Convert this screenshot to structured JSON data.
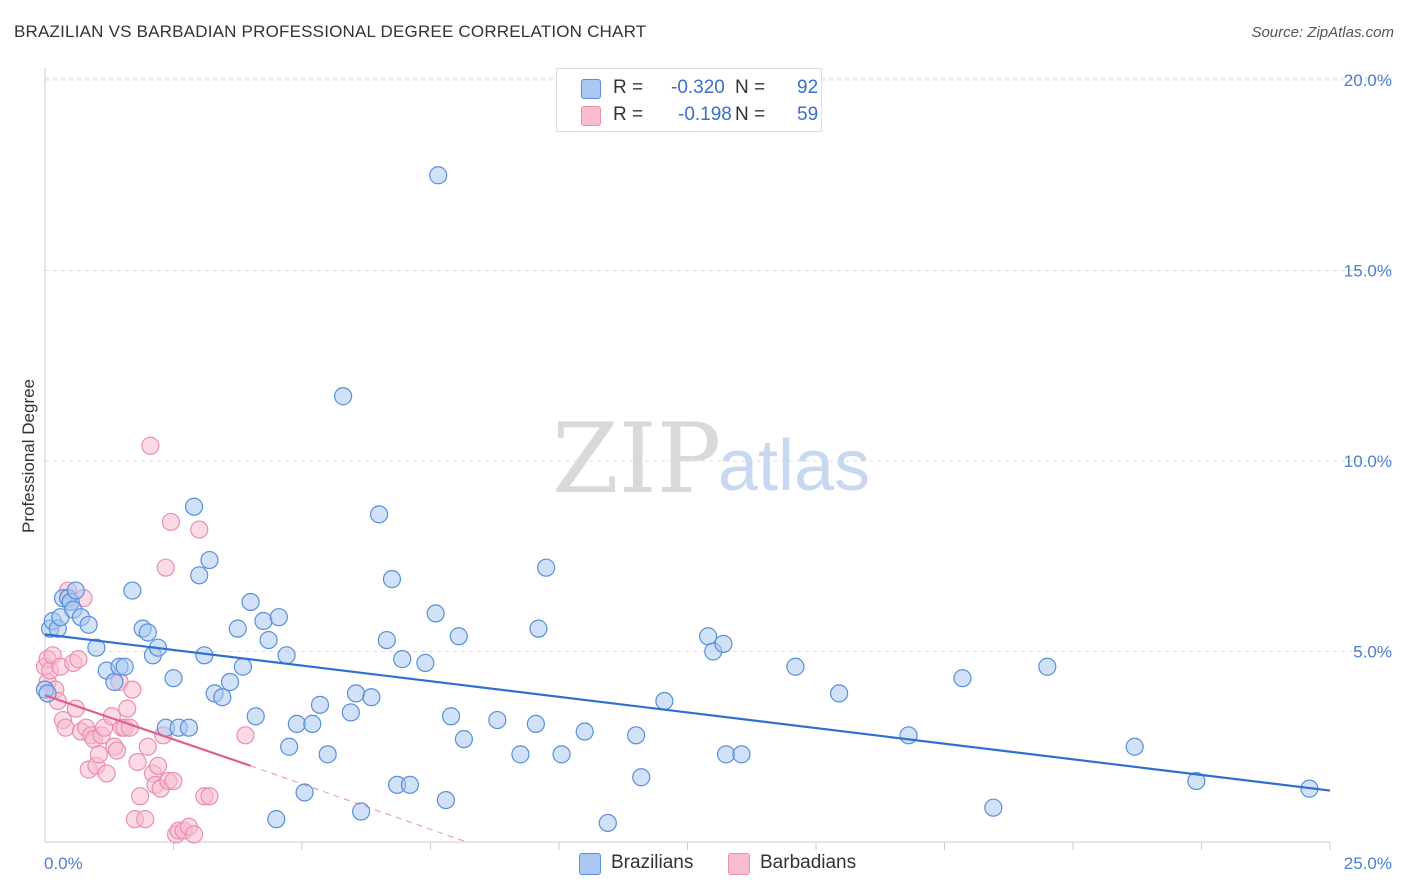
{
  "header": {
    "title": "BRAZILIAN VS BARBADIAN PROFESSIONAL DEGREE CORRELATION CHART",
    "source": "Source: ZipAtlas.com"
  },
  "watermark": {
    "zip": "ZIP",
    "atlas": "atlas"
  },
  "colors": {
    "blue_fill": "#aac8f2",
    "blue_stroke": "#5a8fd8",
    "blue_line": "#2f6fd0",
    "pink_fill": "#f7bcd0",
    "pink_stroke": "#e98fae",
    "pink_line": "#e0608c",
    "tick_label": "#4a7fd4",
    "grid": "#dddddd"
  },
  "legend": {
    "rows": [
      {
        "r_label": "R =",
        "r_value": "-0.320",
        "n_label": "N =",
        "n_value": "92"
      },
      {
        "r_label": "R =",
        "r_value": "-0.198",
        "n_label": "N =",
        "n_value": "59"
      }
    ],
    "bottom": [
      {
        "label": "Brazilians"
      },
      {
        "label": "Barbadians"
      }
    ]
  },
  "chart_data": {
    "type": "scatter",
    "title": "BRAZILIAN VS BARBADIAN PROFESSIONAL DEGREE CORRELATION CHART",
    "xlabel": "",
    "ylabel": "Professional Degree",
    "xlim": [
      0,
      25
    ],
    "ylim": [
      0,
      20.5
    ],
    "x_tick_labels": [
      "0.0%",
      "25.0%"
    ],
    "y_ticks": [
      5,
      10,
      15,
      20
    ],
    "y_tick_labels": [
      "5.0%",
      "10.0%",
      "15.0%",
      "20.0%"
    ],
    "grid": true,
    "legend_position": "top-center",
    "series": [
      {
        "name": "Brazilians",
        "r": -0.32,
        "n": 92,
        "trend": {
          "x": [
            0.0,
            25.0
          ],
          "y": [
            5.45,
            1.35
          ]
        },
        "points": [
          [
            0.0,
            4.0
          ],
          [
            0.05,
            3.9
          ],
          [
            0.1,
            5.6
          ],
          [
            0.15,
            5.8
          ],
          [
            0.25,
            5.6
          ],
          [
            0.3,
            5.9
          ],
          [
            0.35,
            6.4
          ],
          [
            0.45,
            6.4
          ],
          [
            0.5,
            6.3
          ],
          [
            0.55,
            6.1
          ],
          [
            0.6,
            6.6
          ],
          [
            0.7,
            5.9
          ],
          [
            0.85,
            5.7
          ],
          [
            1.0,
            5.1
          ],
          [
            1.2,
            4.5
          ],
          [
            1.35,
            4.2
          ],
          [
            1.45,
            4.6
          ],
          [
            1.55,
            4.6
          ],
          [
            1.7,
            6.6
          ],
          [
            1.9,
            5.6
          ],
          [
            2.0,
            5.5
          ],
          [
            2.1,
            4.9
          ],
          [
            2.2,
            5.1
          ],
          [
            2.35,
            3.0
          ],
          [
            2.5,
            4.3
          ],
          [
            2.6,
            3.0
          ],
          [
            2.8,
            3.0
          ],
          [
            2.9,
            8.8
          ],
          [
            3.0,
            7.0
          ],
          [
            3.1,
            4.9
          ],
          [
            3.2,
            7.4
          ],
          [
            3.3,
            3.9
          ],
          [
            3.45,
            3.8
          ],
          [
            3.6,
            4.2
          ],
          [
            3.75,
            5.6
          ],
          [
            3.85,
            4.6
          ],
          [
            4.0,
            6.3
          ],
          [
            4.1,
            3.3
          ],
          [
            4.25,
            5.8
          ],
          [
            4.35,
            5.3
          ],
          [
            4.5,
            0.6
          ],
          [
            4.55,
            5.9
          ],
          [
            4.7,
            4.9
          ],
          [
            4.75,
            2.5
          ],
          [
            4.9,
            3.1
          ],
          [
            5.05,
            1.3
          ],
          [
            5.2,
            3.1
          ],
          [
            5.35,
            3.6
          ],
          [
            5.5,
            2.3
          ],
          [
            5.8,
            11.7
          ],
          [
            5.95,
            3.4
          ],
          [
            6.05,
            3.9
          ],
          [
            6.15,
            0.8
          ],
          [
            6.35,
            3.8
          ],
          [
            6.5,
            8.6
          ],
          [
            6.65,
            5.3
          ],
          [
            6.75,
            6.9
          ],
          [
            6.85,
            1.5
          ],
          [
            6.95,
            4.8
          ],
          [
            7.1,
            1.5
          ],
          [
            7.4,
            4.7
          ],
          [
            7.6,
            6.0
          ],
          [
            7.65,
            17.5
          ],
          [
            7.8,
            1.1
          ],
          [
            7.9,
            3.3
          ],
          [
            8.05,
            5.4
          ],
          [
            8.15,
            2.7
          ],
          [
            8.8,
            3.2
          ],
          [
            9.25,
            2.3
          ],
          [
            9.55,
            3.1
          ],
          [
            9.6,
            5.6
          ],
          [
            9.75,
            7.2
          ],
          [
            10.05,
            2.3
          ],
          [
            10.5,
            2.9
          ],
          [
            10.95,
            0.5
          ],
          [
            11.5,
            2.8
          ],
          [
            11.6,
            1.7
          ],
          [
            12.05,
            3.7
          ],
          [
            12.9,
            5.4
          ],
          [
            13.0,
            5.0
          ],
          [
            13.2,
            5.2
          ],
          [
            13.25,
            2.3
          ],
          [
            13.55,
            2.3
          ],
          [
            14.6,
            4.6
          ],
          [
            15.45,
            3.9
          ],
          [
            16.8,
            2.8
          ],
          [
            17.85,
            4.3
          ],
          [
            18.45,
            0.9
          ],
          [
            19.5,
            4.6
          ],
          [
            21.2,
            2.5
          ],
          [
            22.4,
            1.6
          ],
          [
            24.6,
            1.4
          ]
        ]
      },
      {
        "name": "Barbadians",
        "r": -0.198,
        "n": 59,
        "trend": {
          "x": [
            0.0,
            4.0
          ],
          "y": [
            3.85,
            2.0
          ]
        },
        "trend_ext": {
          "x": [
            4.0,
            8.2
          ],
          "y": [
            2.0,
            0.0
          ]
        },
        "points": [
          [
            0.0,
            4.6
          ],
          [
            0.05,
            4.8
          ],
          [
            0.05,
            4.2
          ],
          [
            0.1,
            4.5
          ],
          [
            0.15,
            4.9
          ],
          [
            0.2,
            4.0
          ],
          [
            0.25,
            3.7
          ],
          [
            0.3,
            4.6
          ],
          [
            0.35,
            3.2
          ],
          [
            0.4,
            3.0
          ],
          [
            0.45,
            6.6
          ],
          [
            0.5,
            6.3
          ],
          [
            0.55,
            4.7
          ],
          [
            0.6,
            3.5
          ],
          [
            0.65,
            4.8
          ],
          [
            0.7,
            2.9
          ],
          [
            0.75,
            6.4
          ],
          [
            0.8,
            3.0
          ],
          [
            0.85,
            1.9
          ],
          [
            0.9,
            2.8
          ],
          [
            0.95,
            2.7
          ],
          [
            1.0,
            2.0
          ],
          [
            1.05,
            2.3
          ],
          [
            1.1,
            2.8
          ],
          [
            1.15,
            3.0
          ],
          [
            1.2,
            1.8
          ],
          [
            1.3,
            3.3
          ],
          [
            1.35,
            2.5
          ],
          [
            1.4,
            2.4
          ],
          [
            1.45,
            4.2
          ],
          [
            1.5,
            3.0
          ],
          [
            1.55,
            3.0
          ],
          [
            1.6,
            3.5
          ],
          [
            1.65,
            3.0
          ],
          [
            1.7,
            4.0
          ],
          [
            1.75,
            0.6
          ],
          [
            1.8,
            2.1
          ],
          [
            1.85,
            1.2
          ],
          [
            1.95,
            0.6
          ],
          [
            2.0,
            2.5
          ],
          [
            2.05,
            10.4
          ],
          [
            2.1,
            1.8
          ],
          [
            2.15,
            1.5
          ],
          [
            2.2,
            2.0
          ],
          [
            2.25,
            1.4
          ],
          [
            2.3,
            2.8
          ],
          [
            2.35,
            7.2
          ],
          [
            2.4,
            1.6
          ],
          [
            2.45,
            8.4
          ],
          [
            2.5,
            1.6
          ],
          [
            2.55,
            0.2
          ],
          [
            2.6,
            0.3
          ],
          [
            2.7,
            0.3
          ],
          [
            2.8,
            0.4
          ],
          [
            2.9,
            0.2
          ],
          [
            3.0,
            8.2
          ],
          [
            3.1,
            1.2
          ],
          [
            3.2,
            1.2
          ],
          [
            3.9,
            2.8
          ]
        ]
      }
    ]
  }
}
